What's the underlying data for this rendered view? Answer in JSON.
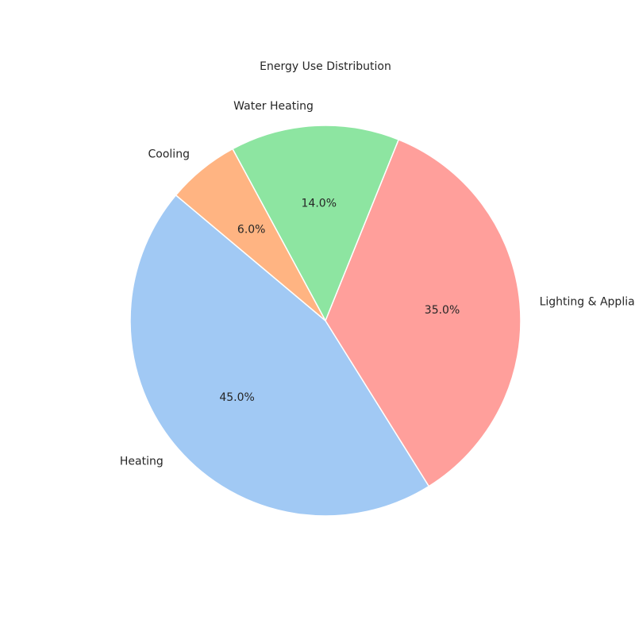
{
  "chart_data": {
    "type": "pie",
    "title": "Energy Use Distribution",
    "categories": [
      "Heating",
      "Lighting & Appliances",
      "Water Heating",
      "Cooling"
    ],
    "values": [
      45.0,
      35.0,
      14.0,
      6.0
    ],
    "percent_labels": [
      "45.0%",
      "35.0%",
      "14.0%",
      "6.0%"
    ],
    "colors": [
      "#a1c9f4",
      "#ff9f9b",
      "#8de5a1",
      "#ffb482"
    ],
    "start_angle_deg": 140,
    "direction": "counterclockwise"
  }
}
